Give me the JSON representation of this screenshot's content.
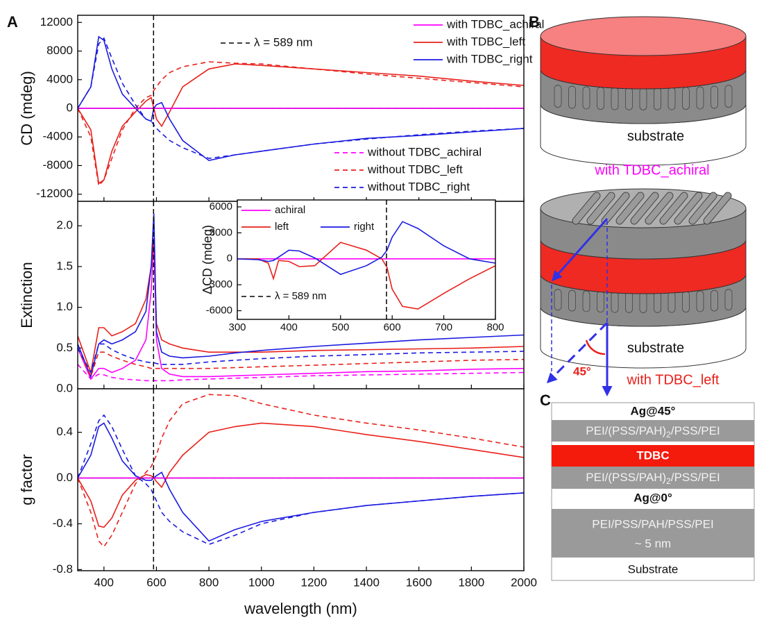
{
  "labels": {
    "a": "A",
    "b": "B",
    "c": "C"
  },
  "chart_data": [
    {
      "type": "line",
      "ylabel": "CD (mdeg)",
      "annotation": "λ = 589 nm",
      "vline": 589,
      "zero_line": 0,
      "xlim": [
        300,
        2000
      ],
      "ylim": [
        -13000,
        13000
      ],
      "yticks": [
        -12000,
        -8000,
        -4000,
        0,
        4000,
        8000,
        12000
      ],
      "x": [
        300,
        350,
        380,
        400,
        430,
        470,
        520,
        560,
        580,
        590,
        600,
        620,
        650,
        700,
        800,
        900,
        1000,
        1200,
        1400,
        1600,
        1800,
        2000
      ],
      "series": [
        {
          "name": "with TDBC_achiral",
          "color": "#ff00ff",
          "dash": false,
          "values": [
            0,
            0,
            0,
            0,
            0,
            0,
            0,
            0,
            0,
            0,
            0,
            0,
            0,
            0,
            0,
            0,
            0,
            0,
            0,
            0,
            0,
            0
          ]
        },
        {
          "name": "with TDBC_left",
          "color": "#e8201a",
          "dash": false,
          "values": [
            0,
            -3000,
            -10500,
            -10000,
            -6000,
            -2500,
            -500,
            1000,
            1500,
            0,
            -1500,
            -2500,
            -500,
            3000,
            5500,
            6200,
            6000,
            5500,
            5000,
            4500,
            3800,
            3200
          ]
        },
        {
          "name": "with TDBC_right",
          "color": "#1a1ae0",
          "dash": false,
          "values": [
            0,
            3000,
            10000,
            9500,
            5500,
            2000,
            0,
            -1500,
            -1800,
            0,
            500,
            800,
            -1500,
            -4500,
            -7300,
            -6500,
            -6000,
            -5000,
            -4200,
            -3800,
            -3300,
            -2800
          ]
        },
        {
          "name": "without TDBC_achiral",
          "color": "#ff00ff",
          "dash": true,
          "values": [
            0,
            0,
            0,
            0,
            0,
            0,
            0,
            0,
            0,
            0,
            0,
            0,
            0,
            0,
            0,
            0,
            0,
            0,
            0,
            0,
            0,
            0
          ]
        },
        {
          "name": "without TDBC_left",
          "color": "#e8201a",
          "dash": true,
          "values": [
            0,
            -4000,
            -10800,
            -10000,
            -7000,
            -3000,
            0,
            1500,
            1800,
            2500,
            3000,
            4000,
            5000,
            5800,
            6500,
            6300,
            6200,
            5500,
            4800,
            4200,
            3600,
            3000
          ]
        },
        {
          "name": "without TDBC_right",
          "color": "#1a1ae0",
          "dash": true,
          "values": [
            0,
            3000,
            9000,
            9800,
            7000,
            3500,
            500,
            -1500,
            -1800,
            -2300,
            -2800,
            -3500,
            -4500,
            -5500,
            -7000,
            -6500,
            -6000,
            -5000,
            -4300,
            -3700,
            -3200,
            -2800
          ]
        }
      ]
    },
    {
      "type": "line",
      "ylabel": "Extinction",
      "vline": 589,
      "xlim": [
        300,
        2000
      ],
      "ylim": [
        0,
        2.3
      ],
      "yticks": [
        {
          "value": 0,
          "label": "0.0"
        },
        0.5,
        {
          "value": 1,
          "label": "1.0"
        },
        1.5,
        {
          "value": 2,
          "label": "2.0"
        }
      ],
      "x": [
        300,
        350,
        380,
        400,
        430,
        470,
        520,
        560,
        580,
        590,
        600,
        620,
        650,
        700,
        800,
        900,
        1000,
        1200,
        1400,
        1600,
        1800,
        2000
      ],
      "series": [
        {
          "color": "#ff00ff",
          "dash": false,
          "values": [
            0.5,
            0.12,
            0.25,
            0.25,
            0.2,
            0.25,
            0.35,
            0.6,
            1.2,
            1.85,
            0.6,
            0.25,
            0.18,
            0.15,
            0.15,
            0.16,
            0.17,
            0.19,
            0.21,
            0.22,
            0.24,
            0.25
          ]
        },
        {
          "color": "#e8201a",
          "dash": false,
          "values": [
            0.65,
            0.2,
            0.75,
            0.75,
            0.65,
            0.7,
            0.8,
            1.1,
            1.5,
            1.85,
            0.8,
            0.6,
            0.55,
            0.5,
            0.45,
            0.45,
            0.45,
            0.47,
            0.48,
            0.49,
            0.5,
            0.52
          ]
        },
        {
          "color": "#1a1ae0",
          "dash": false,
          "values": [
            0.55,
            0.15,
            0.55,
            0.6,
            0.55,
            0.6,
            0.7,
            0.95,
            1.5,
            2.15,
            0.7,
            0.45,
            0.4,
            0.38,
            0.4,
            0.44,
            0.47,
            0.52,
            0.56,
            0.6,
            0.63,
            0.66
          ]
        },
        {
          "color": "#ff00ff",
          "dash": true,
          "values": [
            0.3,
            0.12,
            0.18,
            0.17,
            0.14,
            0.12,
            0.11,
            0.1,
            0.1,
            0.1,
            0.1,
            0.1,
            0.1,
            0.11,
            0.12,
            0.13,
            0.14,
            0.16,
            0.17,
            0.18,
            0.19,
            0.2
          ]
        },
        {
          "color": "#e8201a",
          "dash": true,
          "values": [
            0.5,
            0.15,
            0.45,
            0.45,
            0.4,
            0.35,
            0.3,
            0.27,
            0.25,
            0.25,
            0.25,
            0.25,
            0.25,
            0.25,
            0.25,
            0.26,
            0.27,
            0.29,
            0.31,
            0.33,
            0.35,
            0.36
          ]
        },
        {
          "color": "#1a1ae0",
          "dash": true,
          "values": [
            0.5,
            0.2,
            0.55,
            0.55,
            0.48,
            0.42,
            0.36,
            0.33,
            0.32,
            0.32,
            0.31,
            0.3,
            0.3,
            0.3,
            0.33,
            0.35,
            0.37,
            0.4,
            0.42,
            0.44,
            0.45,
            0.46
          ]
        }
      ]
    },
    {
      "type": "line",
      "ylabel": "g factor",
      "xlabel": "wavelength (nm)",
      "vline": 589,
      "zero_line": 0,
      "xlim": [
        300,
        2000
      ],
      "xticks": [
        400,
        600,
        800,
        1000,
        1200,
        1400,
        1600,
        1800,
        2000
      ],
      "ylim": [
        -0.81,
        0.78
      ],
      "yticks": [
        -0.8,
        -0.4,
        {
          "value": 0,
          "label": "0.0"
        },
        0.4
      ],
      "x": [
        300,
        350,
        380,
        400,
        430,
        470,
        520,
        560,
        580,
        590,
        600,
        620,
        650,
        700,
        800,
        900,
        1000,
        1200,
        1400,
        1600,
        1800,
        2000
      ],
      "series": [
        {
          "color": "#ff00ff",
          "dash": false,
          "values": [
            0,
            0,
            0,
            0,
            0,
            0,
            0,
            0,
            0,
            0,
            0,
            0,
            0,
            0,
            0,
            0,
            0,
            0,
            0,
            0,
            0,
            0
          ]
        },
        {
          "color": "#e8201a",
          "dash": false,
          "values": [
            0,
            -0.2,
            -0.42,
            -0.43,
            -0.35,
            -0.15,
            -0.02,
            0.03,
            0.02,
            0,
            -0.03,
            -0.08,
            0.05,
            0.2,
            0.4,
            0.45,
            0.48,
            0.45,
            0.38,
            0.32,
            0.25,
            0.18
          ]
        },
        {
          "color": "#1a1ae0",
          "dash": false,
          "values": [
            0,
            0.2,
            0.45,
            0.48,
            0.35,
            0.15,
            0.02,
            -0.02,
            -0.02,
            0,
            0.02,
            0.05,
            -0.1,
            -0.3,
            -0.55,
            -0.45,
            -0.38,
            -0.3,
            -0.24,
            -0.2,
            -0.16,
            -0.13
          ]
        },
        {
          "color": "#ff00ff",
          "dash": true,
          "values": [
            0,
            0,
            0,
            0,
            0,
            0,
            0,
            0,
            0,
            0,
            0,
            0,
            0,
            0,
            0,
            0,
            0,
            0,
            0,
            0,
            0,
            0
          ]
        },
        {
          "color": "#e8201a",
          "dash": true,
          "values": [
            0,
            -0.3,
            -0.55,
            -0.6,
            -0.5,
            -0.3,
            -0.05,
            0.05,
            0.1,
            0.15,
            0.2,
            0.35,
            0.5,
            0.65,
            0.73,
            0.72,
            0.65,
            0.55,
            0.48,
            0.42,
            0.35,
            0.27
          ]
        },
        {
          "color": "#1a1ae0",
          "dash": true,
          "values": [
            0,
            0.3,
            0.5,
            0.55,
            0.45,
            0.25,
            0.02,
            -0.05,
            -0.1,
            -0.15,
            -0.2,
            -0.3,
            -0.38,
            -0.47,
            -0.58,
            -0.5,
            -0.4,
            -0.3,
            -0.24,
            -0.2,
            -0.16,
            -0.13
          ]
        }
      ]
    },
    {
      "type": "line",
      "ylabel": "ΔCD (mdeg)",
      "annotation": "λ = 589 nm",
      "vline": 589,
      "xlim": [
        300,
        800
      ],
      "xticks": [
        300,
        400,
        500,
        600,
        700,
        800
      ],
      "ylim": [
        -7000,
        6800
      ],
      "yticks": [
        -6000,
        -3000,
        0,
        3000,
        6000
      ],
      "x": [
        300,
        340,
        360,
        370,
        380,
        400,
        420,
        450,
        500,
        550,
        580,
        590,
        600,
        620,
        650,
        700,
        750,
        800
      ],
      "series": [
        {
          "name": "achiral",
          "color": "#ff00ff",
          "dash": false,
          "values": [
            0,
            0,
            0,
            0,
            0,
            0,
            0,
            0,
            0,
            0,
            0,
            0,
            0,
            0,
            0,
            0,
            0,
            0
          ]
        },
        {
          "name": "left",
          "color": "#e8201a",
          "dash": false,
          "values": [
            0,
            0,
            -500,
            -2300,
            -200,
            -300,
            -900,
            -800,
            1900,
            1000,
            0,
            -1000,
            -3500,
            -5500,
            -5800,
            -4000,
            -2300,
            -800
          ]
        },
        {
          "name": "right",
          "color": "#1a1ae0",
          "dash": false,
          "values": [
            0,
            -100,
            -300,
            -200,
            200,
            1000,
            900,
            100,
            -1800,
            -800,
            200,
            1000,
            2500,
            4300,
            3500,
            1500,
            0,
            -500
          ]
        }
      ]
    }
  ],
  "diagram": {
    "substrate_top": "substrate",
    "caption_top": "with TDBC_achiral",
    "substrate_bottom": "substrate",
    "angle": "45°",
    "caption_bottom": "with TDBC_left"
  },
  "layers": {
    "rows": [
      "Ag@45°",
      [
        "PEI/(PSS/PAH)",
        "2",
        "/PSS/PEI"
      ],
      "TDBC",
      [
        "PEI/(PSS/PAH)",
        "2",
        "/PSS/PEI"
      ],
      "Ag@0°",
      [
        "PEI/PSS/PAH/PSS/PEI",
        "~ 5 nm"
      ],
      "Substrate"
    ]
  }
}
